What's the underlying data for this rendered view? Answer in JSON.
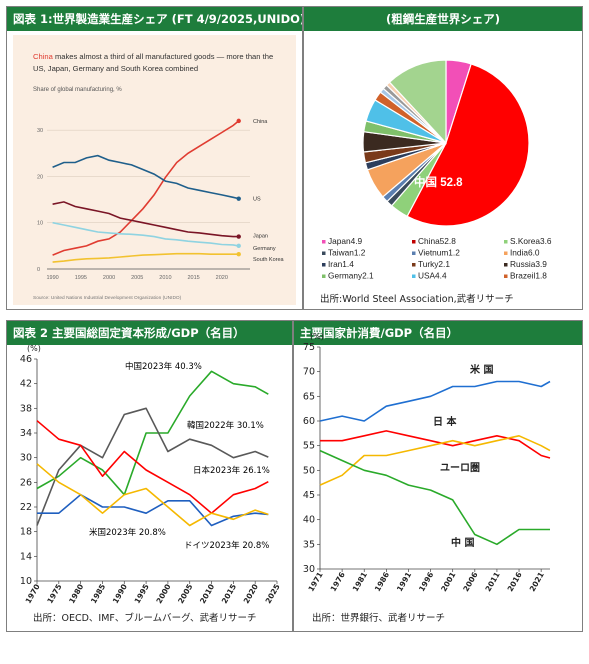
{
  "panels": {
    "p1": {
      "header": "図表 1:世界製造業生産シェア (FT 4/9/2025,UNIDO)"
    },
    "p2": {
      "header": "(粗鋼生産世界シェア)",
      "source": "出所:World Steel Association,武者リサーチ"
    },
    "p3": {
      "header": "図表 2 主要国総固定資本形成/GDP（名目）",
      "source": "出所：OECD、IMF、ブルームバーグ、武者リサーチ"
    },
    "p4": {
      "header": "主要国家計消費/GDP（名目）",
      "source": "出所：世界銀行、武者リサーチ"
    }
  },
  "chart_data": [
    {
      "id": "ft-manufacturing",
      "type": "line",
      "background": "#fbeee2",
      "title_highlight": "China",
      "title_rest": " makes almost a third of all manufactured goods — more than the",
      "title_line2": "US, Japan, Germany and South Korea combined",
      "subtitle": "Share of global manufacturing, %",
      "source": "Source: United Nations Industrial Development Organization (UNIDO)",
      "x": [
        1990,
        1992,
        1994,
        1996,
        1998,
        2000,
        2002,
        2004,
        2006,
        2008,
        2010,
        2012,
        2014,
        2016,
        2018,
        2020,
        2022,
        2023
      ],
      "xlim": [
        1989,
        2025
      ],
      "xticks": [
        1990,
        1995,
        2000,
        2005,
        2010,
        2015,
        2020
      ],
      "ylim": [
        0,
        35
      ],
      "yticks": [
        0,
        10,
        20,
        30
      ],
      "grid": true,
      "series": [
        {
          "name": "China",
          "color": "#e03c31",
          "values": [
            3,
            4,
            4.5,
            5,
            6,
            6.5,
            8,
            10.5,
            13,
            16,
            19.8,
            23,
            25,
            26.5,
            28,
            29.5,
            31,
            32
          ]
        },
        {
          "name": "US",
          "color": "#1f5f8b",
          "values": [
            22,
            23,
            23,
            24,
            24.5,
            23.5,
            23,
            22.5,
            21.5,
            20.5,
            19,
            18.5,
            17.5,
            17,
            16.5,
            16,
            15.5,
            15.2
          ]
        },
        {
          "name": "Japan",
          "color": "#7a1526",
          "values": [
            14,
            14.5,
            13.5,
            13,
            12.5,
            12,
            11,
            10.5,
            10,
            9.5,
            9,
            8.5,
            8,
            7.8,
            7.5,
            7.2,
            7,
            7
          ]
        },
        {
          "name": "Germany",
          "color": "#8fd3e1",
          "values": [
            10,
            9.5,
            9,
            8.5,
            8,
            7.8,
            7.6,
            7.5,
            7.3,
            7,
            6.5,
            6.3,
            6,
            5.8,
            5.6,
            5.3,
            5.2,
            5
          ]
        },
        {
          "name": "South Korea",
          "color": "#f2c230",
          "values": [
            1.5,
            1.7,
            2,
            2.2,
            2.3,
            2.4,
            2.6,
            2.8,
            3,
            3.1,
            3.2,
            3.3,
            3.3,
            3.3,
            3.2,
            3.2,
            3.2,
            3.2
          ]
        }
      ],
      "yticklabels_unit": ""
    },
    {
      "id": "steel-share",
      "type": "pie",
      "label": "中国 52.8",
      "slices": [
        {
          "name": "Japan",
          "value": 4.9,
          "color": "#f24fb7"
        },
        {
          "name": "China",
          "value": 52.8,
          "color": "#ff0000"
        },
        {
          "name": "S.Korea",
          "value": 3.6,
          "color": "#8fd17a"
        },
        {
          "name": "Taiwan",
          "value": 1.2,
          "color": "#3a4a5c"
        },
        {
          "name": "Vietnum",
          "value": 1.2,
          "color": "#5b7fb0"
        },
        {
          "name": "India",
          "value": 6.0,
          "color": "#f5a25d"
        },
        {
          "name": "Iran",
          "value": 1.4,
          "color": "#2d3e5c"
        },
        {
          "name": "Turky",
          "value": 2.1,
          "color": "#7a3a1a"
        },
        {
          "name": "Russia",
          "value": 3.9,
          "color": "#3b2a20"
        },
        {
          "name": "Germany",
          "value": 2.1,
          "color": "#7fc06a"
        },
        {
          "name": "USA",
          "value": 4.4,
          "color": "#4fc0e8"
        },
        {
          "name": "Brazeil",
          "value": 1.8,
          "color": "#d0612a"
        },
        {
          "name": "",
          "value": 0.9,
          "color": "#a6c6e6"
        },
        {
          "name": "",
          "value": 0.9,
          "color": "#9a9a9a"
        },
        {
          "name": "",
          "value": 0.8,
          "color": "#f7d0b0"
        },
        {
          "name": "",
          "value": 11.9,
          "color": "#a3d48f"
        }
      ],
      "legend": [
        {
          "text": "Japan4.9",
          "color": "#f24fb7"
        },
        {
          "text": "China52.8",
          "color": "#c00000"
        },
        {
          "text": "S.Korea3.6",
          "color": "#8fd17a"
        },
        {
          "text": "Taiwan1.2",
          "color": "#3a4a5c"
        },
        {
          "text": "Vietnum1.2",
          "color": "#5b7fb0"
        },
        {
          "text": "India6.0",
          "color": "#f5a25d"
        },
        {
          "text": "Iran1.4",
          "color": "#2d3e5c"
        },
        {
          "text": "Turky2.1",
          "color": "#7a3a1a"
        },
        {
          "text": "Russia3.9",
          "color": "#3b2a20"
        },
        {
          "text": "Germany2.1",
          "color": "#7fc06a"
        },
        {
          "text": "USA4.4",
          "color": "#4fc0e8"
        },
        {
          "text": "Brazeil1.8",
          "color": "#d0612a"
        }
      ]
    },
    {
      "id": "gfcf-gdp",
      "type": "line",
      "ylabel": "(%)",
      "x": [
        1970,
        1975,
        1980,
        1985,
        1990,
        1995,
        2000,
        2005,
        2010,
        2015,
        2020,
        2023
      ],
      "xlim": [
        1970,
        2025
      ],
      "xticks": [
        1970,
        1975,
        1980,
        1985,
        1990,
        1995,
        2000,
        2005,
        2010,
        2015,
        2020,
        2025
      ],
      "ylim": [
        10,
        46
      ],
      "yticks": [
        10,
        14,
        18,
        22,
        26,
        30,
        34,
        38,
        42,
        46
      ],
      "grid": false,
      "series": [
        {
          "name": "中国",
          "color": "#2aaa2a",
          "values": [
            25,
            27,
            30,
            28,
            24,
            34,
            34,
            40,
            44,
            42,
            41.5,
            40.3
          ]
        },
        {
          "name": "韓国",
          "color": "#595959",
          "values": [
            19,
            28,
            32,
            30,
            37,
            38,
            31,
            33,
            32,
            30,
            31,
            30.1
          ]
        },
        {
          "name": "日本",
          "color": "#ff0000",
          "values": [
            36,
            33,
            32,
            27,
            31,
            28,
            26,
            24,
            21,
            24,
            25,
            26.1
          ]
        },
        {
          "name": "米国",
          "color": "#1f5fbf",
          "values": [
            21,
            21,
            24,
            22,
            22,
            21,
            23,
            23,
            19,
            20.5,
            21,
            20.8
          ]
        },
        {
          "name": "ドイツ",
          "color": "#f5b800",
          "values": [
            29,
            26,
            24,
            21,
            24,
            25,
            22,
            19,
            21,
            20,
            21.5,
            20.8
          ]
        }
      ],
      "annotations": [
        {
          "text": "中国2023年 40.3%",
          "color": "#000000"
        },
        {
          "text": "韓国2022年 30.1%",
          "color": "#000000"
        },
        {
          "text": "日本2023年 26.1%",
          "color": "#000000"
        },
        {
          "text": "米国2023年 20.8%",
          "color": "#000000"
        },
        {
          "text": "ドイツ2023年 20.8%",
          "color": "#000000"
        }
      ]
    },
    {
      "id": "household-consumption",
      "type": "line",
      "ylabel": "(%)",
      "x": [
        1971,
        1976,
        1981,
        1986,
        1991,
        1996,
        2001,
        2006,
        2011,
        2016,
        2021,
        2023
      ],
      "xlim": [
        1971,
        2023
      ],
      "xticks": [
        1971,
        1976,
        1981,
        1986,
        1991,
        1996,
        2001,
        2006,
        2011,
        2016,
        2021
      ],
      "ylim": [
        30,
        75
      ],
      "yticks": [
        30,
        35,
        40,
        45,
        50,
        55,
        60,
        65,
        70,
        75
      ],
      "grid": false,
      "series": [
        {
          "name": "米国",
          "color": "#1f6fd1",
          "values": [
            60,
            61,
            60,
            63,
            64,
            65,
            67,
            67,
            68,
            68,
            67,
            68
          ]
        },
        {
          "name": "日本",
          "color": "#ff0000",
          "values": [
            56,
            56,
            57,
            58,
            57,
            56,
            55,
            56,
            57,
            56,
            53,
            52.5
          ]
        },
        {
          "name": "ユーロ圏",
          "color": "#f5b800",
          "values": [
            47,
            49,
            53,
            53,
            54,
            55,
            56,
            55,
            56,
            57,
            55,
            54
          ]
        },
        {
          "name": "中国",
          "color": "#2aaa2a",
          "values": [
            54,
            52,
            50,
            49,
            47,
            46,
            44,
            37,
            35,
            38,
            38,
            38
          ]
        }
      ],
      "labels": [
        "米 国",
        "日 本",
        "ユーロ圏",
        "中 国"
      ]
    }
  ]
}
